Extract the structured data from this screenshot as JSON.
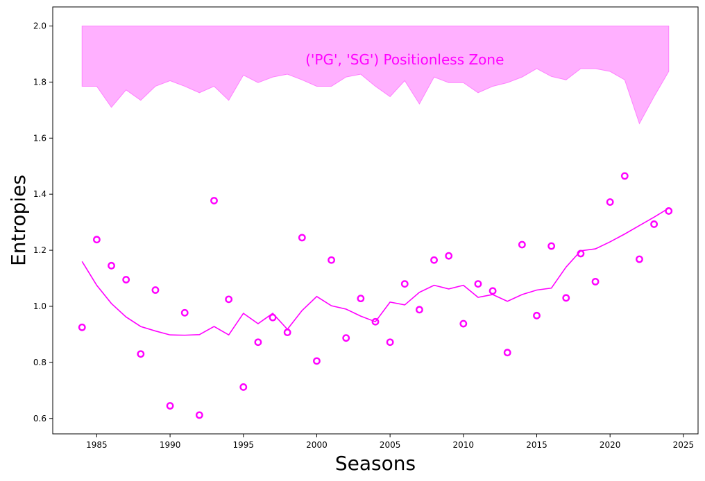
{
  "chart_data": {
    "type": "scatter",
    "xlabel": "Seasons",
    "ylabel": "Entropies",
    "xlim": [
      1982,
      2026
    ],
    "ylim": [
      0.545,
      2.068
    ],
    "xticks": [
      1985,
      1990,
      1995,
      2000,
      2005,
      2010,
      2015,
      2020,
      2025
    ],
    "yticks": [
      0.6,
      0.8,
      1.0,
      1.2,
      1.4,
      1.6,
      1.8,
      2.0
    ],
    "grid": false,
    "color": "#ff00ff",
    "band_color": "#ffb0ff",
    "band_edge_color": "#ff80ff",
    "annotation": "('PG', 'SG') Positionless Zone",
    "points": {
      "x": [
        1984,
        1985,
        1986,
        1987,
        1988,
        1989,
        1990,
        1991,
        1992,
        1993,
        1994,
        1995,
        1996,
        1997,
        1998,
        1999,
        2000,
        2001,
        2002,
        2003,
        2004,
        2005,
        2006,
        2007,
        2008,
        2009,
        2010,
        2011,
        2012,
        2013,
        2014,
        2015,
        2016,
        2017,
        2018,
        2019,
        2020,
        2021,
        2022,
        2023,
        2024
      ],
      "y": [
        0.925,
        1.238,
        1.145,
        1.095,
        0.83,
        1.058,
        0.645,
        0.977,
        0.612,
        1.377,
        1.025,
        0.712,
        0.872,
        0.96,
        0.907,
        1.245,
        0.805,
        1.165,
        0.887,
        1.028,
        0.945,
        0.872,
        1.08,
        0.988,
        1.165,
        1.18,
        0.938,
        1.08,
        1.055,
        0.835,
        1.22,
        0.967,
        1.215,
        1.03,
        1.188,
        1.088,
        1.372,
        1.465,
        1.168,
        1.293,
        1.34
      ]
    },
    "trend": {
      "x": [
        1984,
        1985,
        1986,
        1987,
        1988,
        1989,
        1990,
        1991,
        1992,
        1993,
        1994,
        1995,
        1996,
        1997,
        1998,
        1999,
        2000,
        2001,
        2002,
        2003,
        2004,
        2005,
        2006,
        2007,
        2008,
        2009,
        2010,
        2011,
        2012,
        2013,
        2014,
        2015,
        2016,
        2017,
        2018,
        2019,
        2020,
        2021,
        2022,
        2023,
        2024
      ],
      "y": [
        1.16,
        1.075,
        1.01,
        0.962,
        0.928,
        0.912,
        0.898,
        0.897,
        0.899,
        0.928,
        0.898,
        0.975,
        0.938,
        0.975,
        0.918,
        0.985,
        1.035,
        1.002,
        0.99,
        0.965,
        0.945,
        1.015,
        1.005,
        1.05,
        1.075,
        1.062,
        1.075,
        1.032,
        1.042,
        1.018,
        1.042,
        1.058,
        1.065,
        1.14,
        1.198,
        1.205,
        1.23,
        1.258,
        1.288,
        1.318,
        1.35
      ]
    },
    "band": {
      "x": [
        1984,
        1985,
        1986,
        1987,
        1988,
        1989,
        1990,
        1991,
        1992,
        1993,
        1994,
        1995,
        1996,
        1997,
        1998,
        1999,
        2000,
        2001,
        2002,
        2003,
        2004,
        2005,
        2006,
        2007,
        2008,
        2009,
        2010,
        2011,
        2012,
        2013,
        2014,
        2015,
        2016,
        2017,
        2018,
        2019,
        2020,
        2021,
        2022,
        2023,
        2024
      ],
      "lower": [
        1.785,
        1.785,
        1.71,
        1.772,
        1.735,
        1.785,
        1.805,
        1.785,
        1.762,
        1.785,
        1.735,
        1.825,
        1.798,
        1.818,
        1.828,
        1.808,
        1.785,
        1.785,
        1.818,
        1.828,
        1.785,
        1.748,
        1.805,
        1.722,
        1.818,
        1.798,
        1.798,
        1.762,
        1.785,
        1.798,
        1.818,
        1.848,
        1.82,
        1.808,
        1.848,
        1.848,
        1.838,
        1.808,
        1.652,
        1.748,
        1.838
      ],
      "upper": 2.0
    }
  }
}
